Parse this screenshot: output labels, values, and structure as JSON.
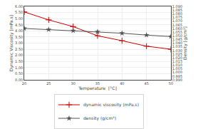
{
  "chart_data": {
    "type": "line",
    "xlabel": "Temperature  [°C]",
    "ylabel": "Dynamic Viscosity [mPa.s]",
    "y2label": "Density [g/cm³]",
    "x": [
      20,
      25,
      30,
      35,
      40,
      45,
      50
    ],
    "series": [
      {
        "name": "dynamic viscosity (mPa.s)",
        "color": "#cc0000",
        "marker": "plus",
        "values": [
          5.55,
          4.9,
          4.35,
          3.6,
          3.2,
          2.75,
          2.5
        ]
      },
      {
        "name": "density (g/cm³)",
        "color": "#555555",
        "marker": "star",
        "axis": "y2",
        "values": [
          1.06,
          1.0585,
          1.057,
          1.0555,
          1.0535,
          1.051,
          1.049
        ]
      }
    ],
    "xlim": [
      20,
      50
    ],
    "xticks": [
      20,
      25,
      30,
      35,
      40,
      45,
      50
    ],
    "ylim": [
      0.0,
      6.0
    ],
    "yticks": [
      {
        "value": 0.0,
        "label": "0.00"
      },
      {
        "value": 0.5,
        "label": "0.50"
      },
      {
        "value": 1.0,
        "label": "1.00"
      },
      {
        "value": 1.5,
        "label": "1.50"
      },
      {
        "value": 2.0,
        "label": "2.00"
      },
      {
        "value": 2.5,
        "label": "2.50"
      },
      {
        "value": 3.0,
        "label": "3.00"
      },
      {
        "value": 3.5,
        "label": "3.50"
      },
      {
        "value": 4.0,
        "label": "4.00"
      },
      {
        "value": 4.5,
        "label": "4.50"
      },
      {
        "value": 5.0,
        "label": "5.00"
      },
      {
        "value": 5.5,
        "label": "5.50"
      },
      {
        "value": 6.0,
        "label": "6.00"
      }
    ],
    "y2lim": [
      0.99,
      1.09
    ],
    "y2ticks": [
      {
        "value": 0.99,
        "label": "0.990"
      },
      {
        "value": 0.995,
        "label": "0.995"
      },
      {
        "value": 1.0,
        "label": "1.000"
      },
      {
        "value": 1.005,
        "label": "1.005"
      },
      {
        "value": 1.01,
        "label": "1.010"
      },
      {
        "value": 1.015,
        "label": "1.015"
      },
      {
        "value": 1.02,
        "label": "1.020"
      },
      {
        "value": 1.025,
        "label": "1.025"
      },
      {
        "value": 1.03,
        "label": "1.030"
      },
      {
        "value": 1.035,
        "label": "1.035"
      },
      {
        "value": 1.04,
        "label": "1.040"
      },
      {
        "value": 1.045,
        "label": "1.045"
      },
      {
        "value": 1.05,
        "label": "1.050"
      },
      {
        "value": 1.055,
        "label": "1.055"
      },
      {
        "value": 1.06,
        "label": "1.060"
      },
      {
        "value": 1.065,
        "label": "1.065"
      },
      {
        "value": 1.07,
        "label": "1.070"
      },
      {
        "value": 1.075,
        "label": "1.075"
      },
      {
        "value": 1.08,
        "label": "1.080"
      },
      {
        "value": 1.085,
        "label": "1.085"
      },
      {
        "value": 1.09,
        "label": "1.090"
      }
    ],
    "grid": true,
    "legend": "bottom"
  }
}
